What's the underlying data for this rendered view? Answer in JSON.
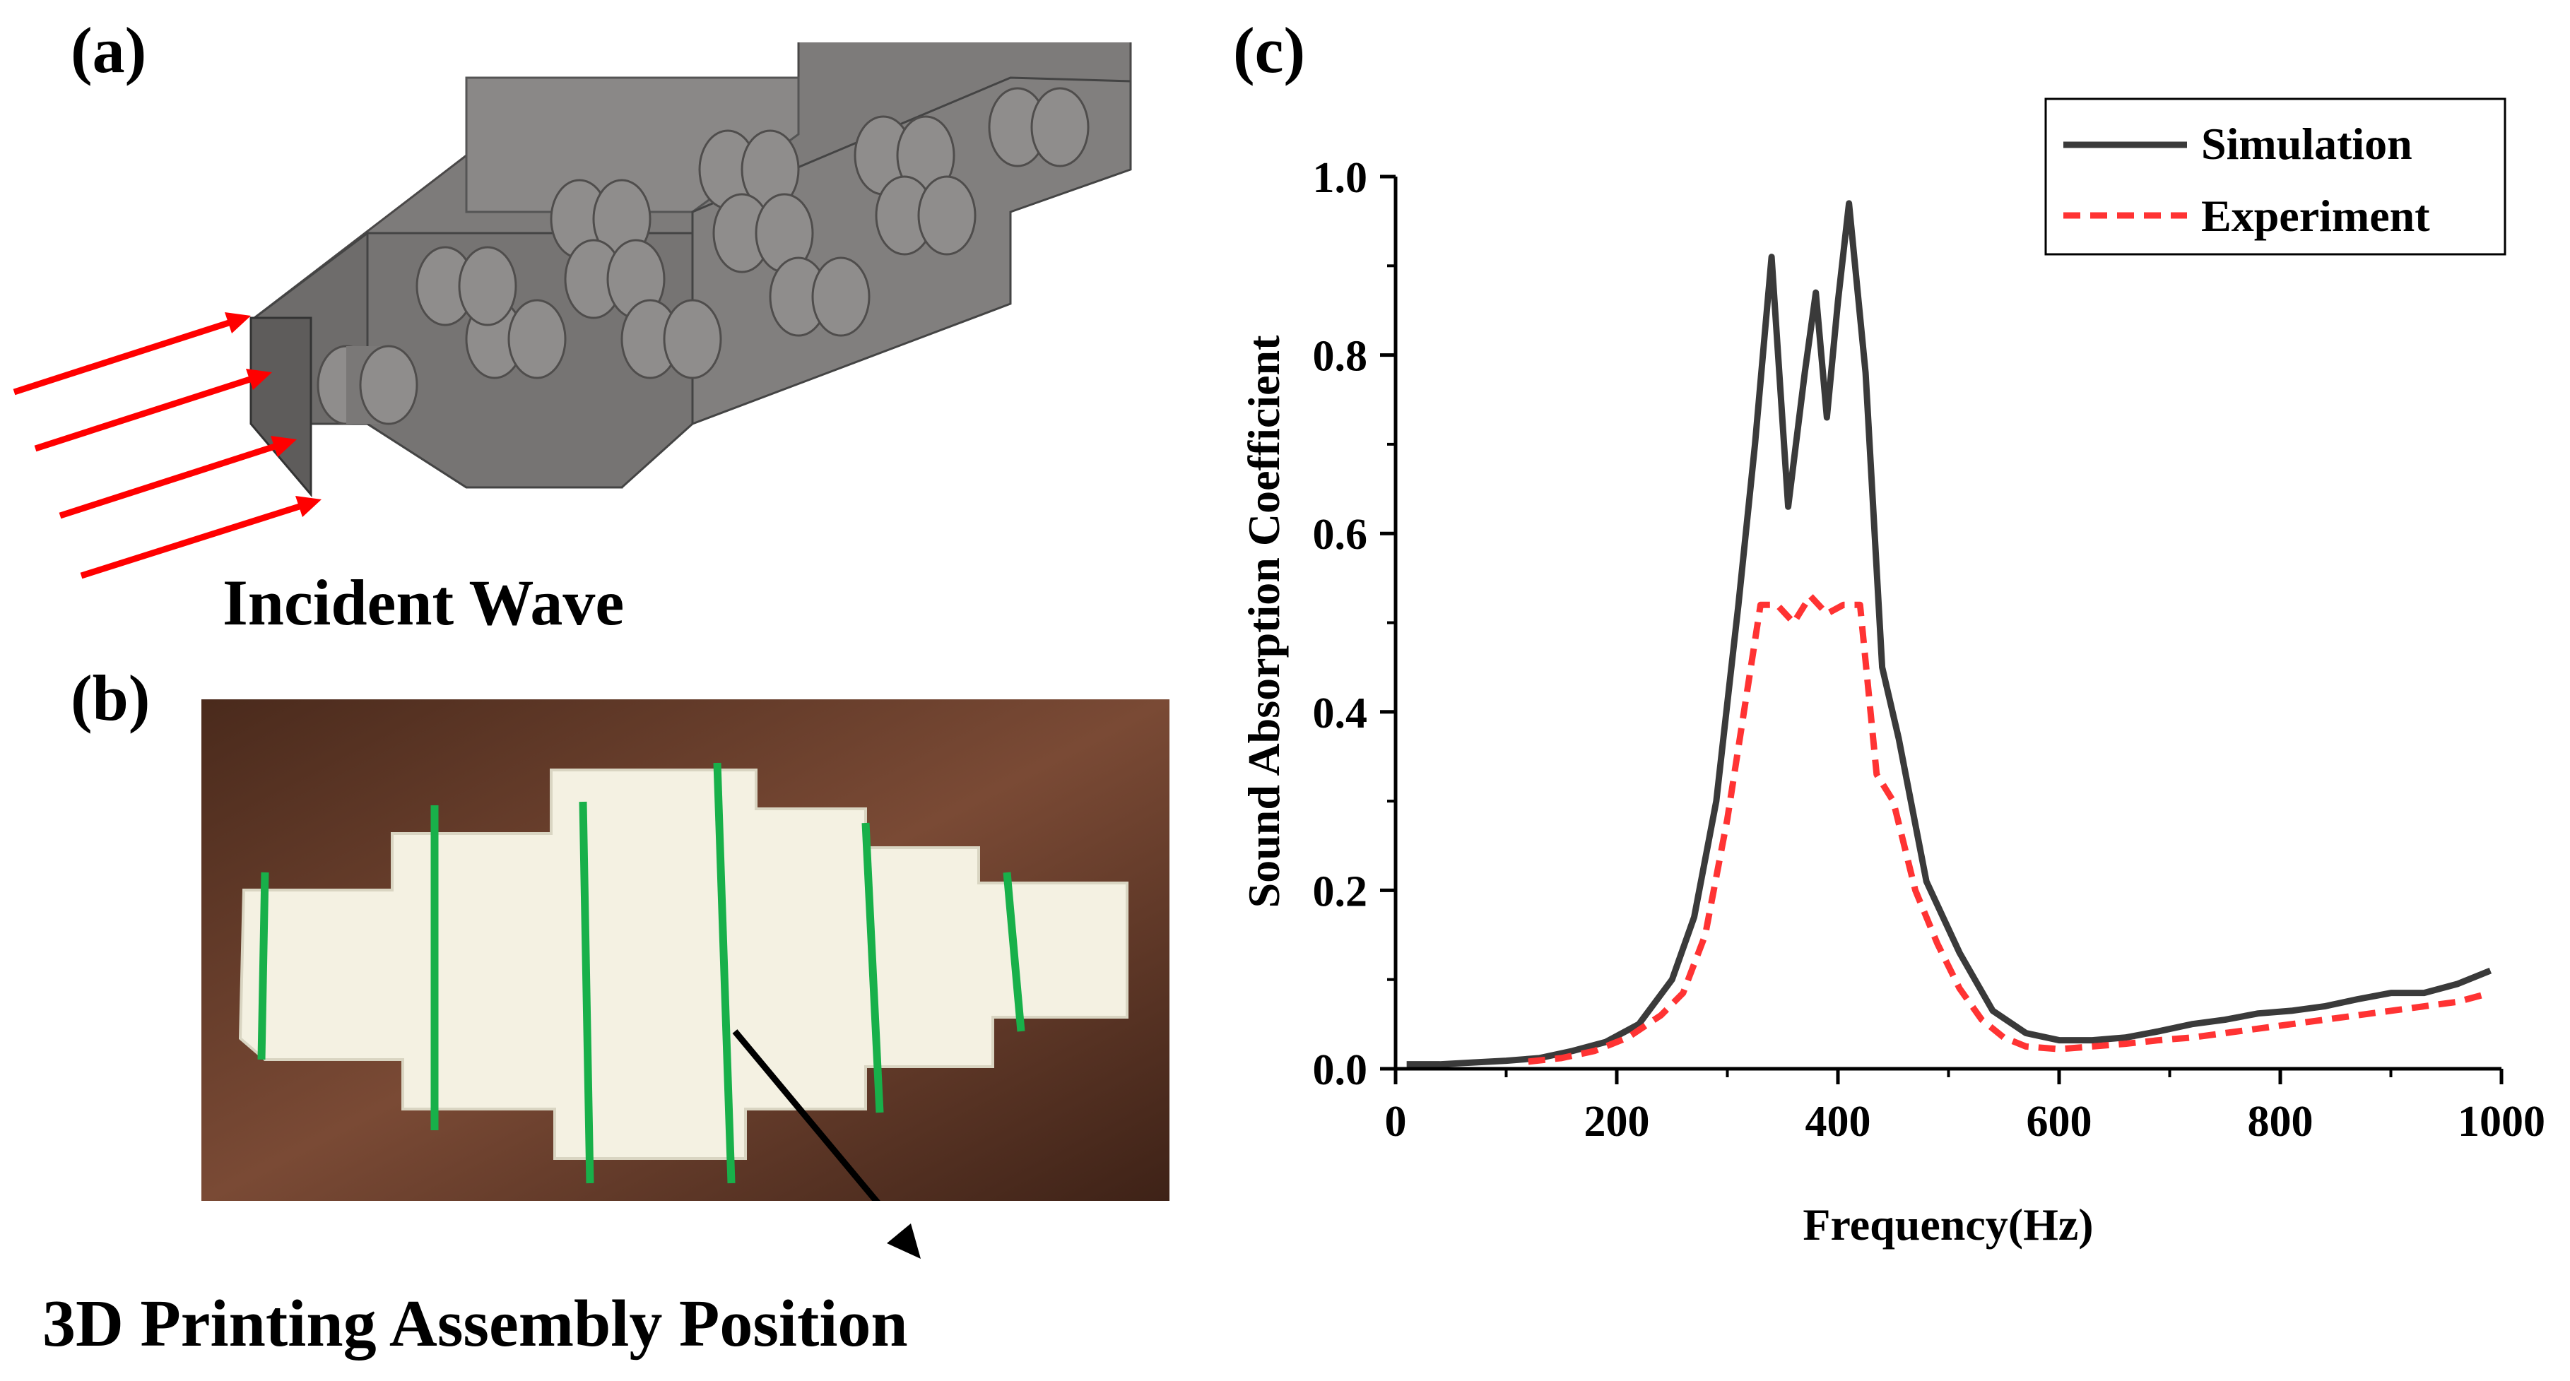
{
  "panels": {
    "a": {
      "label": "(a)",
      "caption": "Incident Wave"
    },
    "b": {
      "label": "(b)",
      "caption": "3D Printing Assembly Position"
    },
    "c": {
      "label": "(c)"
    }
  },
  "colors": {
    "simulation": "#3a3a3a",
    "experiment": "#ff3333",
    "arrow": "#ff0000",
    "green_marker": "#18b04a"
  },
  "chart_data": {
    "type": "line",
    "title": "",
    "xlabel": "Frequency(Hz)",
    "ylabel": "Sound Absorption Coefficient",
    "xlim": [
      0,
      1000
    ],
    "ylim": [
      0,
      1.0
    ],
    "xticks": [
      0,
      200,
      400,
      600,
      800,
      1000
    ],
    "xtick_labels": [
      "0",
      "200",
      "400",
      "600",
      "800",
      "1000"
    ],
    "yticks": [
      0.0,
      0.2,
      0.4,
      0.6,
      0.8,
      1.0
    ],
    "ytick_labels": [
      "0.0",
      "0.2",
      "0.4",
      "0.6",
      "0.8",
      "1.0"
    ],
    "legend_position": "top-right",
    "series": [
      {
        "name": "Simulation",
        "style": "solid",
        "x": [
          10,
          40,
          70,
          100,
          130,
          160,
          190,
          220,
          250,
          270,
          290,
          310,
          325,
          340,
          355,
          370,
          380,
          390,
          400,
          410,
          425,
          440,
          455,
          480,
          510,
          540,
          570,
          600,
          630,
          660,
          690,
          720,
          750,
          780,
          810,
          840,
          870,
          900,
          930,
          960,
          990
        ],
        "values": [
          0.005,
          0.005,
          0.007,
          0.009,
          0.012,
          0.02,
          0.03,
          0.05,
          0.1,
          0.17,
          0.3,
          0.52,
          0.7,
          0.91,
          0.63,
          0.78,
          0.87,
          0.73,
          0.86,
          0.97,
          0.78,
          0.45,
          0.37,
          0.21,
          0.13,
          0.065,
          0.04,
          0.032,
          0.032,
          0.035,
          0.042,
          0.05,
          0.055,
          0.062,
          0.065,
          0.07,
          0.078,
          0.085,
          0.085,
          0.095,
          0.11
        ]
      },
      {
        "name": "Experiment",
        "style": "dashed",
        "x": [
          120,
          150,
          180,
          210,
          240,
          260,
          280,
          300,
          315,
          330,
          345,
          360,
          375,
          390,
          405,
          420,
          435,
          450,
          470,
          490,
          510,
          530,
          550,
          570,
          600,
          630,
          660,
          690,
          720,
          750,
          780,
          810,
          840,
          870,
          900,
          930,
          960,
          990
        ],
        "values": [
          0.008,
          0.012,
          0.02,
          0.035,
          0.06,
          0.085,
          0.15,
          0.28,
          0.4,
          0.52,
          0.52,
          0.5,
          0.53,
          0.51,
          0.52,
          0.52,
          0.33,
          0.3,
          0.2,
          0.14,
          0.09,
          0.055,
          0.035,
          0.025,
          0.022,
          0.025,
          0.028,
          0.032,
          0.035,
          0.04,
          0.045,
          0.05,
          0.055,
          0.06,
          0.065,
          0.07,
          0.075,
          0.085
        ]
      }
    ]
  }
}
